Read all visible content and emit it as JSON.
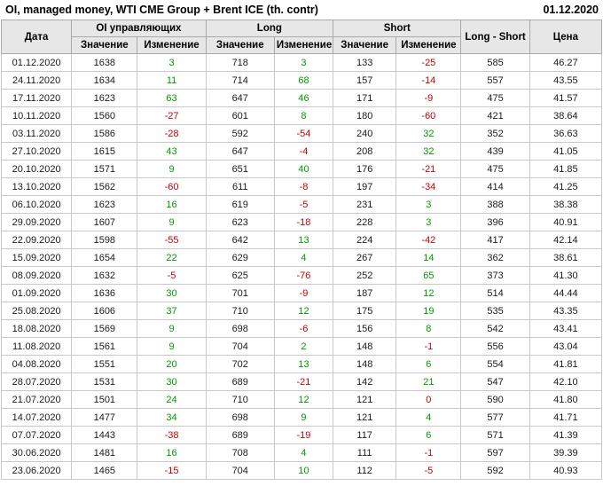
{
  "colors": {
    "positive": "#009900",
    "negative": "#cc0000",
    "header_bg": "#e7e7e7",
    "grid_line": "#c9c9c9"
  },
  "chart_data": {
    "type": "table",
    "title": "OI, managed money, WTI CME Group + Brent ICE (th. contr)",
    "report_date": "01.12.2020",
    "column_groups": [
      {
        "label": "Дата"
      },
      {
        "label": "OI управляющих"
      },
      {
        "label": "Long"
      },
      {
        "label": "Short"
      },
      {
        "label": "Long - Short"
      },
      {
        "label": "Цена"
      }
    ],
    "sub_headers": [
      "Значение",
      "Изменение",
      "Значение",
      "Изменение",
      "Значение",
      "Изменение"
    ],
    "columns": [
      "Дата",
      "OI Значение",
      "OI Изменение",
      "Long Значение",
      "Long Изменение",
      "Short Значение",
      "Short Изменение",
      "Long - Short",
      "Цена"
    ],
    "rows": [
      [
        "01.12.2020",
        1638,
        3,
        718,
        3,
        133,
        -25,
        585,
        "46.27"
      ],
      [
        "24.11.2020",
        1634,
        11,
        714,
        68,
        157,
        -14,
        557,
        "43.55"
      ],
      [
        "17.11.2020",
        1623,
        63,
        647,
        46,
        171,
        -9,
        475,
        "41.57"
      ],
      [
        "10.11.2020",
        1560,
        -27,
        601,
        8,
        180,
        -60,
        421,
        "38.64"
      ],
      [
        "03.11.2020",
        1586,
        -28,
        592,
        -54,
        240,
        32,
        352,
        "36.63"
      ],
      [
        "27.10.2020",
        1615,
        43,
        647,
        -4,
        208,
        32,
        439,
        "41.05"
      ],
      [
        "20.10.2020",
        1571,
        9,
        651,
        40,
        176,
        -21,
        475,
        "41.85"
      ],
      [
        "13.10.2020",
        1562,
        -60,
        611,
        -8,
        197,
        -34,
        414,
        "41.25"
      ],
      [
        "06.10.2020",
        1623,
        16,
        619,
        -5,
        231,
        3,
        388,
        "38.38"
      ],
      [
        "29.09.2020",
        1607,
        9,
        623,
        -18,
        228,
        3,
        396,
        "40.91"
      ],
      [
        "22.09.2020",
        1598,
        -55,
        642,
        13,
        224,
        -42,
        417,
        "42.14"
      ],
      [
        "15.09.2020",
        1654,
        22,
        629,
        4,
        267,
        14,
        362,
        "38.61"
      ],
      [
        "08.09.2020",
        1632,
        -5,
        625,
        -76,
        252,
        65,
        373,
        "41.30"
      ],
      [
        "01.09.2020",
        1636,
        30,
        701,
        -9,
        187,
        12,
        514,
        "44.44"
      ],
      [
        "25.08.2020",
        1606,
        37,
        710,
        12,
        175,
        19,
        535,
        "43.35"
      ],
      [
        "18.08.2020",
        1569,
        9,
        698,
        -6,
        156,
        8,
        542,
        "43.41"
      ],
      [
        "11.08.2020",
        1561,
        9,
        704,
        2,
        148,
        -1,
        556,
        "43.04"
      ],
      [
        "04.08.2020",
        1551,
        20,
        702,
        13,
        148,
        6,
        554,
        "41.81"
      ],
      [
        "28.07.2020",
        1531,
        30,
        689,
        -21,
        142,
        21,
        547,
        "42.10"
      ],
      [
        "21.07.2020",
        1501,
        24,
        710,
        12,
        121,
        0,
        590,
        "41.80"
      ],
      [
        "14.07.2020",
        1477,
        34,
        698,
        9,
        121,
        4,
        577,
        "41.71"
      ],
      [
        "07.07.2020",
        1443,
        -38,
        689,
        -19,
        117,
        6,
        571,
        "41.39"
      ],
      [
        "30.06.2020",
        1481,
        16,
        708,
        4,
        111,
        -1,
        597,
        "39.39"
      ],
      [
        "23.06.2020",
        1465,
        -15,
        704,
        10,
        112,
        -5,
        592,
        "40.93"
      ]
    ]
  }
}
